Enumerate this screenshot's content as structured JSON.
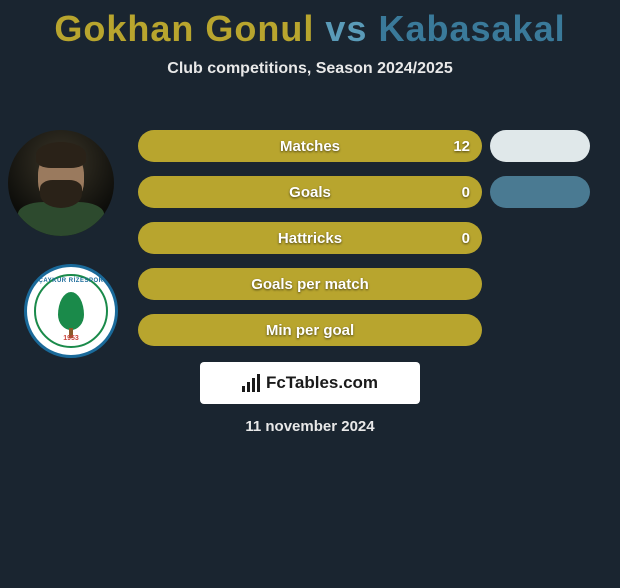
{
  "title": {
    "player1": "Gokhan Gonul",
    "vs": "vs",
    "player2": "Kabasakal"
  },
  "subtitle": "Club competitions, Season 2024/2025",
  "club_badge": {
    "top_text": "ÇAYKUR RİZESPOR",
    "bottom_text": "1953"
  },
  "stats": [
    {
      "label": "Matches",
      "value": "12",
      "bar_width_pct": 100
    },
    {
      "label": "Goals",
      "value": "0",
      "bar_width_pct": 100
    },
    {
      "label": "Hattricks",
      "value": "0",
      "bar_width_pct": 100
    },
    {
      "label": "Goals per match",
      "value": "",
      "bar_width_pct": 100
    },
    {
      "label": "Min per goal",
      "value": "",
      "bar_width_pct": 100
    }
  ],
  "right_ovals": [
    {
      "color": "#e0e8ea"
    },
    {
      "color": "#4a7a92"
    }
  ],
  "footer": {
    "brand": "FcTables.com",
    "date": "11 november 2024"
  },
  "colors": {
    "bar_fill": "#b8a52e",
    "background": "#1a2530",
    "title_p1": "#b8a52e",
    "title_vs": "#5a9bb8",
    "title_p2": "#3a7a9a",
    "text_light": "#e8e8e8"
  }
}
